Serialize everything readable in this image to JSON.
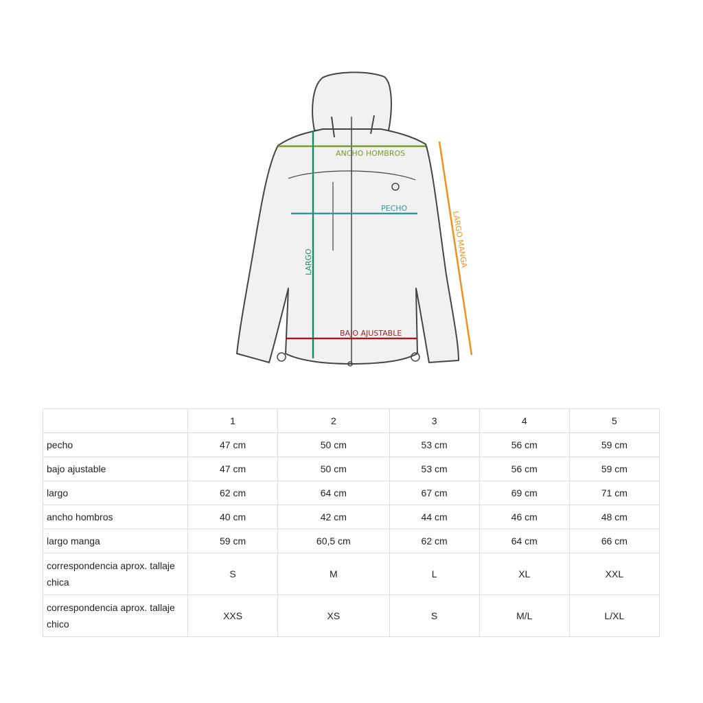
{
  "diagram": {
    "labels": {
      "shoulders": "ANCHO HOMBROS",
      "chest": "PECHO",
      "length": "LARGO",
      "hem": "BAJO AJUSTABLE",
      "sleeve": "LARGO MANGA"
    },
    "colors": {
      "shoulders": "#7a9a2a",
      "chest": "#2a9a9a",
      "length": "#1a8f6a",
      "hem": "#a02020",
      "sleeve": "#f0901a"
    }
  },
  "table": {
    "headers": [
      "",
      "1",
      "2",
      "3",
      "4",
      "5"
    ],
    "rows": [
      [
        "pecho",
        "47 cm",
        "50 cm",
        "53 cm",
        "56 cm",
        "59 cm"
      ],
      [
        "bajo ajustable",
        "47 cm",
        "50 cm",
        "53 cm",
        "56 cm",
        "59 cm"
      ],
      [
        "largo",
        "62 cm",
        "64 cm",
        "67 cm",
        "69 cm",
        "71 cm"
      ],
      [
        "ancho hombros",
        "40 cm",
        "42 cm",
        "44 cm",
        "46 cm",
        "48 cm"
      ],
      [
        "largo manga",
        "59 cm",
        "60,5 cm",
        "62 cm",
        "64 cm",
        "66 cm"
      ],
      [
        "correspondencia aprox. tallaje chica",
        "S",
        "M",
        "L",
        "XL",
        "XXL"
      ],
      [
        "correspondencia aprox. tallaje chico",
        "XXS",
        "XS",
        "S",
        "M/L",
        "L/XL"
      ]
    ]
  }
}
